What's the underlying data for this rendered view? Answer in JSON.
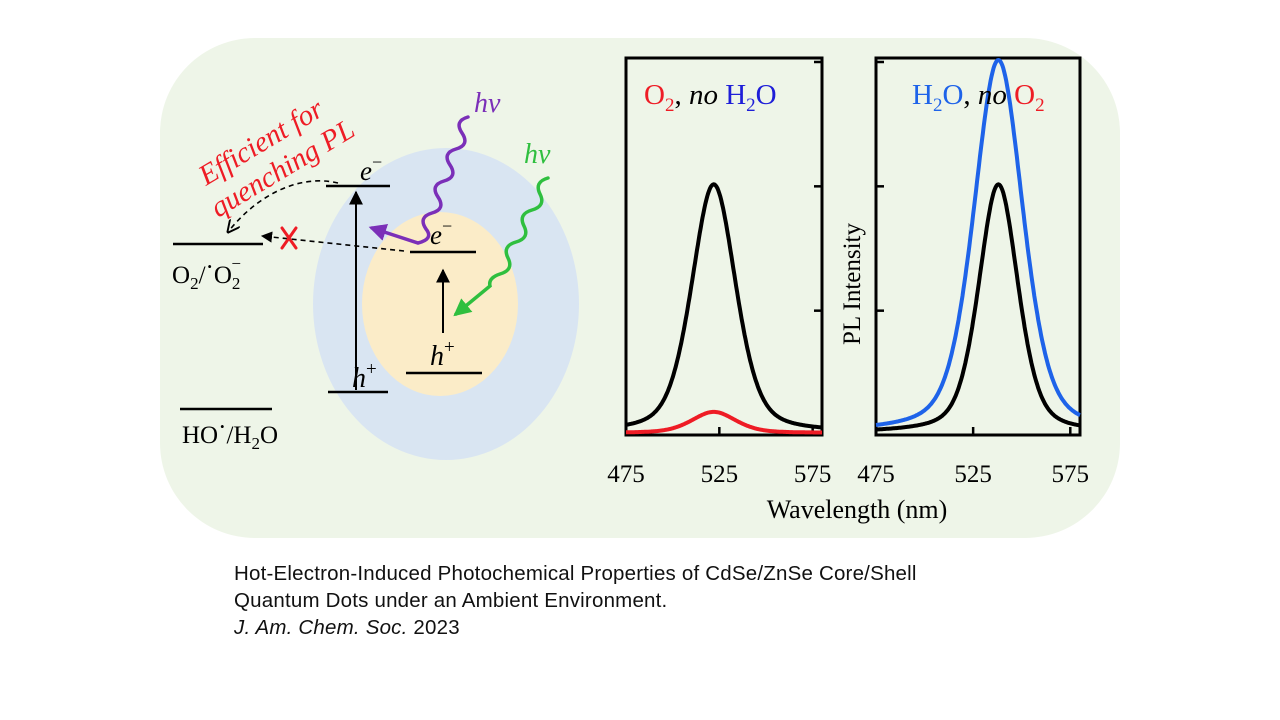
{
  "figure": {
    "colors": {
      "panel_bg": "#eef5e8",
      "shell": "#d9e5f2",
      "core": "#fbecc8",
      "purple": "#7b2fb8",
      "green": "#2fbf3f",
      "red": "#ee1c25",
      "blue": "#1e63e9",
      "black": "#000000"
    },
    "icons": [
      "wavy-photon-arrow-icon",
      "cross-mark-icon"
    ],
    "schematic": {
      "annotation_line1": "Efficient for",
      "annotation_line2": "quenching PL",
      "hv_label": "hν",
      "electron_label": "e",
      "electron_sup": "−",
      "hole_label": "h",
      "hole_sup": "+",
      "o2_level_main": "O",
      "o2_level_sub": "2",
      "o2_level_sep": "/",
      "o2_level_dot": "·",
      "o2_level_sup": "−",
      "ho_level_main": "HO",
      "ho_level_dot": "·",
      "ho_level_mid": "/H",
      "ho_level_sub": "2",
      "ho_level_end": "O"
    },
    "legend_left": {
      "o2": "O",
      "o2_sub": "2",
      "no": "no",
      "h2o": "H",
      "h2o_sub": "2",
      "h2o_end": "O"
    },
    "legend_right": {
      "h2o": "H",
      "h2o_sub": "2",
      "h2o_end": "O",
      "no": "no",
      "o2": "O",
      "o2_sub": "2"
    },
    "ylabel": "PL Intensity",
    "xlabel": "Wavelength (nm)",
    "x_ticks": [
      "475",
      "525",
      "575"
    ]
  },
  "chart_data": [
    {
      "type": "line",
      "xlim": [
        475,
        580
      ],
      "ylim": [
        0,
        1.5
      ],
      "x_ticks": [
        475,
        525,
        575
      ],
      "series": [
        {
          "color": "#000000",
          "center": 522,
          "fwhm": 28,
          "peak": 1.0
        },
        {
          "color": "#ee1c25",
          "center": 522,
          "fwhm": 28,
          "peak": 0.085
        }
      ]
    },
    {
      "type": "line",
      "xlim": [
        475,
        580
      ],
      "ylim": [
        0,
        1.5
      ],
      "x_ticks": [
        475,
        525,
        575
      ],
      "series": [
        {
          "color": "#1e63e9",
          "center": 538,
          "fwhm": 30,
          "peak": 1.5
        },
        {
          "color": "#000000",
          "center": 538,
          "fwhm": 24,
          "peak": 1.0
        }
      ]
    }
  ],
  "caption": {
    "line1": "Hot-Electron-Induced Photochemical Properties of CdSe/ZnSe Core/Shell",
    "line2": "Quantum Dots under an Ambient Environment.",
    "journal": "J. Am. Chem. Soc.",
    "year": " 2023"
  }
}
